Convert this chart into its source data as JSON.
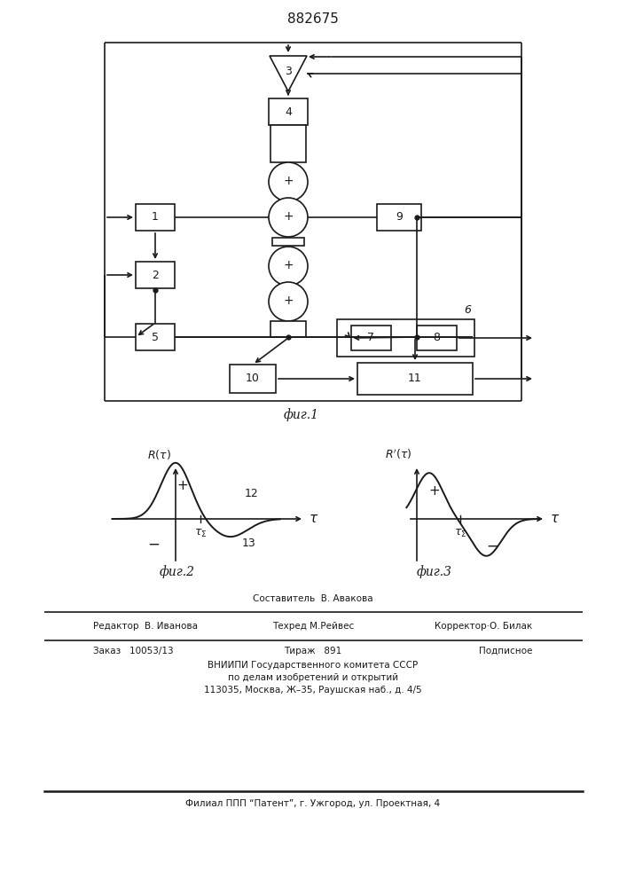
{
  "patent_number": "882675",
  "fig1_caption": "фиг.1",
  "fig2_caption": "фиг.2",
  "fig3_caption": "фиг.3",
  "footer_sestavitel_label": "Составитель  В. Авакова",
  "footer_redaktor_label": "Редактор",
  "footer_redaktor_name": "В. Иванова",
  "footer_tehred_label": "Техред",
  "footer_tehred_name": "М.Рейвес",
  "footer_korrektor_label": "Корректор·О. Билак",
  "footer_zakaz": "Заказ   10053/13",
  "footer_tirazh": "Тираж   891",
  "footer_podpisnoe": "Подписное",
  "footer_vniipи": "ВНИИПИ Государственного комитета СССР",
  "footer_po_delam": "по делам изобретений и открытий",
  "footer_address": "113035, Москва, Ж–35, Раушская наб., д. 4/5",
  "footer_filial": "Филиал ППП “Патент”, г. Ужгород, ул. Проектная, 4",
  "bg_color": "#ffffff",
  "line_color": "#1a1a1a"
}
